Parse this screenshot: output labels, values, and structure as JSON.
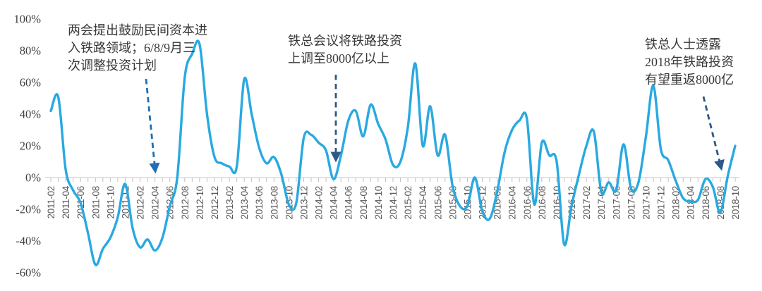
{
  "chart_data": {
    "type": "line",
    "title": "",
    "xlabel": "",
    "ylabel": "",
    "ylim": [
      -60,
      100
    ],
    "grid": false,
    "legend": "none",
    "y_ticks": [
      "100%",
      "80%",
      "60%",
      "40%",
      "20%",
      "0%",
      "-20%",
      "-40%",
      "-60%"
    ],
    "x_tick_every": 2,
    "x": [
      "2011-02",
      "2011-03",
      "2011-04",
      "2011-05",
      "2011-06",
      "2011-07",
      "2011-08",
      "2011-09",
      "2011-10",
      "2011-11",
      "2011-12",
      "2012-01",
      "2012-02",
      "2012-03",
      "2012-04",
      "2012-05",
      "2012-06",
      "2012-07",
      "2012-08",
      "2012-09",
      "2012-10",
      "2012-11",
      "2012-12",
      "2013-01",
      "2013-02",
      "2013-03",
      "2013-04",
      "2013-05",
      "2013-06",
      "2013-07",
      "2013-08",
      "2013-09",
      "2013-10",
      "2013-11",
      "2013-12",
      "2014-01",
      "2014-02",
      "2014-03",
      "2014-04",
      "2014-05",
      "2014-06",
      "2014-07",
      "2014-08",
      "2014-09",
      "2014-10",
      "2014-11",
      "2014-12",
      "2015-01",
      "2015-02",
      "2015-03",
      "2015-04",
      "2015-05",
      "2015-06",
      "2015-07",
      "2015-08",
      "2015-09",
      "2015-10",
      "2015-11",
      "2015-12",
      "2016-01",
      "2016-02",
      "2016-03",
      "2016-04",
      "2016-05",
      "2016-06",
      "2016-07",
      "2016-08",
      "2016-09",
      "2016-10",
      "2016-11",
      "2016-12",
      "2017-01",
      "2017-02",
      "2017-03",
      "2017-04",
      "2017-05",
      "2017-06",
      "2017-07",
      "2017-08",
      "2017-09",
      "2017-10",
      "2017-11",
      "2017-12",
      "2018-01",
      "2018-02",
      "2018-03",
      "2018-04",
      "2018-05",
      "2018-06",
      "2018-07",
      "2018-08",
      "2018-09",
      "2018-10"
    ],
    "values": [
      42,
      51,
      5,
      -8,
      -16,
      -35,
      -55,
      -45,
      -38,
      -25,
      -4,
      -32,
      -44,
      -39,
      -46,
      -38,
      -18,
      0,
      63,
      78,
      84,
      40,
      13,
      9,
      7,
      7,
      62,
      40,
      19,
      9,
      13,
      2,
      -17,
      -16,
      25,
      27,
      22,
      17,
      -1,
      14,
      36,
      42,
      26,
      46,
      34,
      24,
      8,
      10,
      32,
      72,
      20,
      45,
      14,
      27,
      -5,
      -18,
      -18,
      0,
      -21,
      -26,
      -9,
      16,
      30,
      36,
      37,
      -17,
      22,
      14,
      10,
      -42,
      -18,
      2,
      20,
      29,
      -9,
      -3,
      -8,
      21,
      -7,
      -3,
      26,
      58,
      18,
      11,
      -2,
      -13,
      -15,
      -14,
      -1,
      -6,
      -22,
      1,
      20
    ]
  },
  "annotations": [
    {
      "lines": [
        "两会提出鼓励民间资本进",
        "入铁路领域；6/8/9月三",
        "次调整投资计划"
      ],
      "arrow_points_to": "2012-04"
    },
    {
      "lines": [
        "铁总会议将铁路投资",
        "上调至8000亿以上"
      ],
      "arrow_points_to": "2014-04"
    },
    {
      "lines": [
        "铁总人士透露",
        "2018年铁路投资",
        "有望重返8000亿"
      ],
      "arrow_points_to": "2018-09"
    }
  ],
  "colors": {
    "line": "#29A9E1",
    "arrow1": "#1E6FB5",
    "arrow2": "#2D5986",
    "arrow3": "#2D5986",
    "axis_line": "#D9D9D9",
    "tick": "#BFBFBF",
    "y_label": "#3F3F3F",
    "x_label": "#595959",
    "annotation_text": "#383838"
  }
}
